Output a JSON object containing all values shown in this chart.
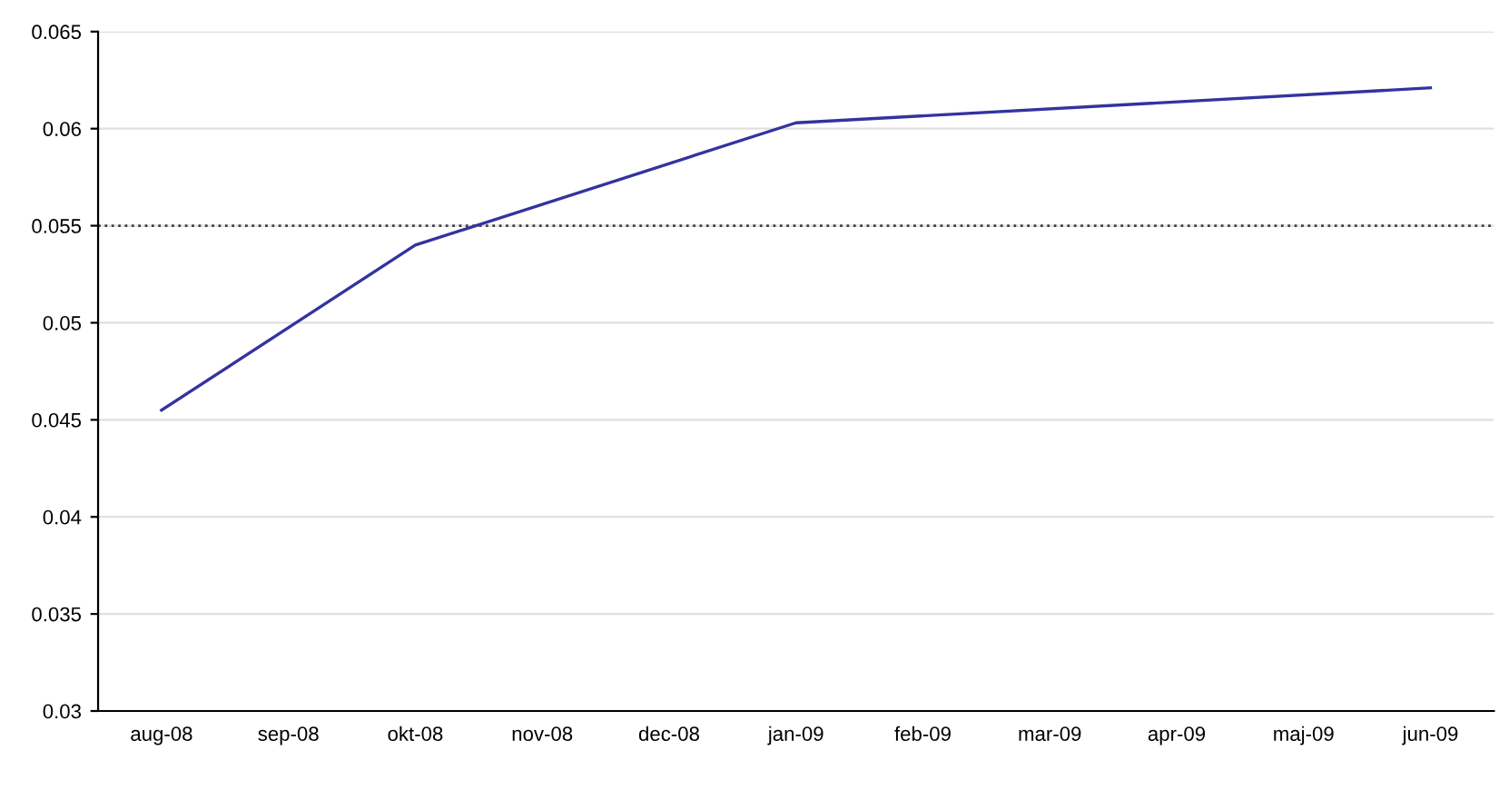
{
  "chart_data": {
    "type": "line",
    "categories": [
      "aug-08",
      "sep-08",
      "okt-08",
      "nov-08",
      "dec-08",
      "jan-09",
      "feb-09",
      "mar-09",
      "apr-09",
      "maj-09",
      "jun-09"
    ],
    "series": [
      {
        "color": "#3333a0",
        "values": [
          0.0455,
          null,
          0.054,
          null,
          null,
          0.0603,
          null,
          null,
          null,
          null,
          0.0621
        ]
      }
    ],
    "ylim": [
      0.03,
      0.065
    ],
    "yticks": [
      0.03,
      0.035,
      0.04,
      0.045,
      0.05,
      0.055,
      0.06,
      0.065
    ],
    "grid": "y",
    "marker": "none",
    "line_style": "solid",
    "ref_lines": [
      {
        "axis": "y",
        "value": 0.055,
        "color": "#404040",
        "line_style": "dotted"
      }
    ]
  }
}
